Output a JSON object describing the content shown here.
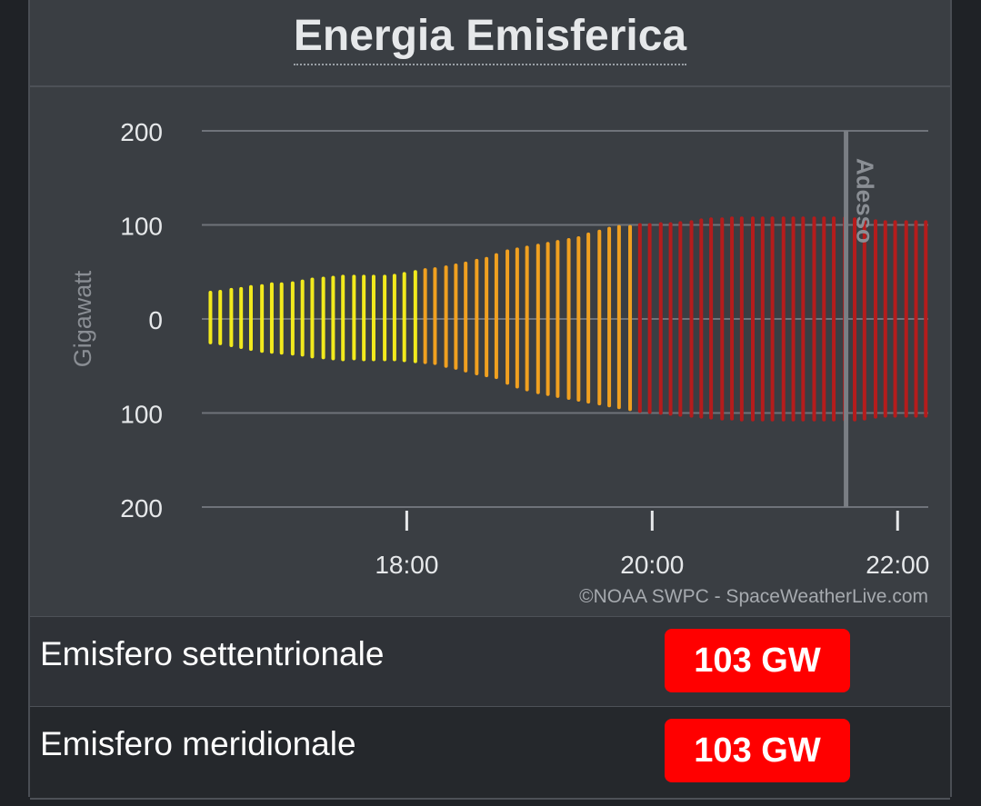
{
  "header": {
    "title": "Energia Emisferica"
  },
  "chart_data": {
    "type": "bar",
    "ylabel": "Gigawatt",
    "y_ticks": [
      "200",
      "100",
      "0",
      "100",
      "200"
    ],
    "ylim": [
      -200,
      200
    ],
    "x_ticks": [
      {
        "label": "18:00",
        "hour": 18.0
      },
      {
        "label": "20:00",
        "hour": 20.0
      },
      {
        "label": "22:00",
        "hour": 22.0
      }
    ],
    "xlim_hours": [
      16.33,
      22.25
    ],
    "now_marker": {
      "label": "Adesso",
      "hour": 21.58
    },
    "credit": "©NOAA SWPC - SpaceWeatherLive.com",
    "colors": {
      "low": "#f2ea1d",
      "mid": "#f0a020",
      "high": "#b51c1c",
      "grid": "#6f737a",
      "text": "#e6e8ea",
      "muted": "#8a8e94"
    },
    "series": [
      {
        "values": [
          {
            "hour": 16.4,
            "north": 28,
            "south": 25,
            "level": "low"
          },
          {
            "hour": 16.48,
            "north": 29,
            "south": 26,
            "level": "low"
          },
          {
            "hour": 16.57,
            "north": 31,
            "south": 28,
            "level": "low"
          },
          {
            "hour": 16.65,
            "north": 32,
            "south": 30,
            "level": "low"
          },
          {
            "hour": 16.73,
            "north": 34,
            "south": 32,
            "level": "low"
          },
          {
            "hour": 16.82,
            "north": 35,
            "south": 34,
            "level": "low"
          },
          {
            "hour": 16.9,
            "north": 37,
            "south": 35,
            "level": "low"
          },
          {
            "hour": 16.98,
            "north": 37,
            "south": 36,
            "level": "low"
          },
          {
            "hour": 17.07,
            "north": 38,
            "south": 37,
            "level": "low"
          },
          {
            "hour": 17.15,
            "north": 40,
            "south": 38,
            "level": "low"
          },
          {
            "hour": 17.23,
            "north": 42,
            "south": 40,
            "level": "low"
          },
          {
            "hour": 17.32,
            "north": 43,
            "south": 41,
            "level": "low"
          },
          {
            "hour": 17.4,
            "north": 44,
            "south": 42,
            "level": "low"
          },
          {
            "hour": 17.48,
            "north": 45,
            "south": 43,
            "level": "low"
          },
          {
            "hour": 17.57,
            "north": 45,
            "south": 42,
            "level": "low"
          },
          {
            "hour": 17.65,
            "north": 45,
            "south": 43,
            "level": "low"
          },
          {
            "hour": 17.73,
            "north": 45,
            "south": 43,
            "level": "low"
          },
          {
            "hour": 17.82,
            "north": 45,
            "south": 43,
            "level": "low"
          },
          {
            "hour": 17.9,
            "north": 46,
            "south": 43,
            "level": "low"
          },
          {
            "hour": 17.98,
            "north": 48,
            "south": 44,
            "level": "low"
          },
          {
            "hour": 18.07,
            "north": 50,
            "south": 45,
            "level": "low"
          },
          {
            "hour": 18.15,
            "north": 52,
            "south": 46,
            "level": "mid"
          },
          {
            "hour": 18.23,
            "north": 53,
            "south": 47,
            "level": "mid"
          },
          {
            "hour": 18.32,
            "north": 55,
            "south": 50,
            "level": "mid"
          },
          {
            "hour": 18.4,
            "north": 57,
            "south": 52,
            "level": "mid"
          },
          {
            "hour": 18.48,
            "north": 59,
            "south": 55,
            "level": "mid"
          },
          {
            "hour": 18.57,
            "north": 62,
            "south": 58,
            "level": "mid"
          },
          {
            "hour": 18.65,
            "north": 64,
            "south": 60,
            "level": "mid"
          },
          {
            "hour": 18.73,
            "north": 68,
            "south": 62,
            "level": "mid"
          },
          {
            "hour": 18.82,
            "north": 72,
            "south": 68,
            "level": "mid"
          },
          {
            "hour": 18.9,
            "north": 74,
            "south": 72,
            "level": "mid"
          },
          {
            "hour": 18.98,
            "north": 76,
            "south": 75,
            "level": "mid"
          },
          {
            "hour": 19.07,
            "north": 78,
            "south": 78,
            "level": "mid"
          },
          {
            "hour": 19.15,
            "north": 80,
            "south": 80,
            "level": "mid"
          },
          {
            "hour": 19.23,
            "north": 82,
            "south": 82,
            "level": "mid"
          },
          {
            "hour": 19.32,
            "north": 84,
            "south": 84,
            "level": "mid"
          },
          {
            "hour": 19.4,
            "north": 86,
            "south": 86,
            "level": "mid"
          },
          {
            "hour": 19.48,
            "north": 90,
            "south": 88,
            "level": "mid"
          },
          {
            "hour": 19.57,
            "north": 93,
            "south": 90,
            "level": "mid"
          },
          {
            "hour": 19.65,
            "north": 96,
            "south": 92,
            "level": "mid"
          },
          {
            "hour": 19.73,
            "north": 98,
            "south": 94,
            "level": "mid"
          },
          {
            "hour": 19.82,
            "north": 98,
            "south": 96,
            "level": "mid"
          },
          {
            "hour": 19.9,
            "north": 100,
            "south": 98,
            "level": "high"
          },
          {
            "hour": 19.98,
            "north": 100,
            "south": 99,
            "level": "high"
          },
          {
            "hour": 20.07,
            "north": 101,
            "south": 100,
            "level": "high"
          },
          {
            "hour": 20.15,
            "north": 101,
            "south": 101,
            "level": "high"
          },
          {
            "hour": 20.23,
            "north": 102,
            "south": 102,
            "level": "high"
          },
          {
            "hour": 20.32,
            "north": 103,
            "south": 103,
            "level": "high"
          },
          {
            "hour": 20.4,
            "north": 105,
            "south": 104,
            "level": "high"
          },
          {
            "hour": 20.48,
            "north": 106,
            "south": 105,
            "level": "high"
          },
          {
            "hour": 20.57,
            "north": 106,
            "south": 106,
            "level": "high"
          },
          {
            "hour": 20.65,
            "north": 107,
            "south": 106,
            "level": "high"
          },
          {
            "hour": 20.73,
            "north": 107,
            "south": 107,
            "level": "high"
          },
          {
            "hour": 20.82,
            "north": 107,
            "south": 107,
            "level": "high"
          },
          {
            "hour": 20.9,
            "north": 107,
            "south": 107,
            "level": "high"
          },
          {
            "hour": 20.98,
            "north": 107,
            "south": 107,
            "level": "high"
          },
          {
            "hour": 21.07,
            "north": 107,
            "south": 107,
            "level": "high"
          },
          {
            "hour": 21.15,
            "north": 107,
            "south": 107,
            "level": "high"
          },
          {
            "hour": 21.23,
            "north": 107,
            "south": 107,
            "level": "high"
          },
          {
            "hour": 21.32,
            "north": 107,
            "south": 107,
            "level": "high"
          },
          {
            "hour": 21.4,
            "north": 107,
            "south": 107,
            "level": "high"
          },
          {
            "hour": 21.48,
            "north": 107,
            "south": 107,
            "level": "high"
          },
          {
            "hour": 21.57,
            "north": 107,
            "south": 107,
            "level": "high"
          },
          {
            "hour": 21.65,
            "north": 106,
            "south": 107,
            "level": "high"
          },
          {
            "hour": 21.73,
            "north": 105,
            "south": 106,
            "level": "high"
          },
          {
            "hour": 21.82,
            "north": 104,
            "south": 104,
            "level": "high"
          },
          {
            "hour": 21.9,
            "north": 103,
            "south": 103,
            "level": "high"
          },
          {
            "hour": 21.98,
            "north": 103,
            "south": 103,
            "level": "high"
          },
          {
            "hour": 22.07,
            "north": 103,
            "south": 103,
            "level": "high"
          },
          {
            "hour": 22.15,
            "north": 103,
            "south": 103,
            "level": "high"
          },
          {
            "hour": 22.23,
            "north": 103,
            "south": 103,
            "level": "high"
          }
        ]
      }
    ]
  },
  "rows": [
    {
      "label": "Emisfero settentrionale",
      "value": "103 GW"
    },
    {
      "label": "Emisfero meridionale",
      "value": "103 GW"
    }
  ]
}
